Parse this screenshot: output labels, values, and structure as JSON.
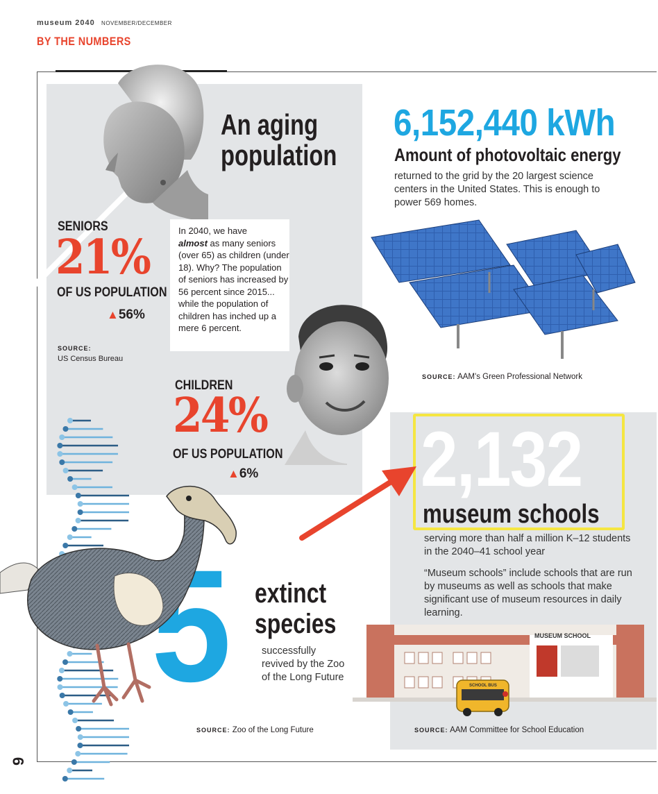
{
  "header": {
    "brand": "museum 2040",
    "issue": "NOVEMBER/DECEMBER",
    "section": "BY THE NUMBERS"
  },
  "aging": {
    "title_line1": "An aging",
    "title_line2": "population",
    "seniors": {
      "label": "SENIORS",
      "percent": "21%",
      "of_label": "OF US POPULATION",
      "change": "56%"
    },
    "source_label": "SOURCE:",
    "source": "US Census Bureau",
    "box_text_1": "In 2040, we have",
    "box_text_em": "almost",
    "box_text_2": " as many seniors (over 65) as children (under 18). Why? The population of seniors has increased by 56 percent since 2015... while the population of children has inched up a mere 6 percent.",
    "children": {
      "label": "CHILDREN",
      "percent": "24%",
      "of_label": "OF US POPULATION",
      "change": "6%"
    }
  },
  "energy": {
    "value": "6,152,440 kWh",
    "heading": "Amount of photovoltaic energy",
    "description": "returned to the grid by the 20 largest science centers in the United States. This is enough to power 569 homes.",
    "source_label": "SOURCE:",
    "source": "AAM's Green Professional Network"
  },
  "schools": {
    "number": "2,132",
    "heading": "museum schools",
    "description": "serving more than half a million K–12 students in the 2040–41 school year",
    "definition": "“Museum schools” include schools that are run by museums as well as schools that make significant use of museum resources in daily learning.",
    "building_sign": "MUSEUM SCHOOL",
    "bus_sign": "SCHOOL BUS",
    "source_label": "SOURCE:",
    "source": "AAM Committee for School Education"
  },
  "extinct": {
    "number": "5",
    "heading_line1": "extinct",
    "heading_line2": "species",
    "description": "successfully revived by the Zoo of the Long Future",
    "source_label": "SOURCE:",
    "source": "Zoo of the Long Future"
  },
  "page_number": "9",
  "colors": {
    "accent_red": "#e8442d",
    "accent_blue": "#1ea7e1",
    "highlight_yellow": "#f5e642",
    "panel_gray": "#e3e5e7"
  }
}
